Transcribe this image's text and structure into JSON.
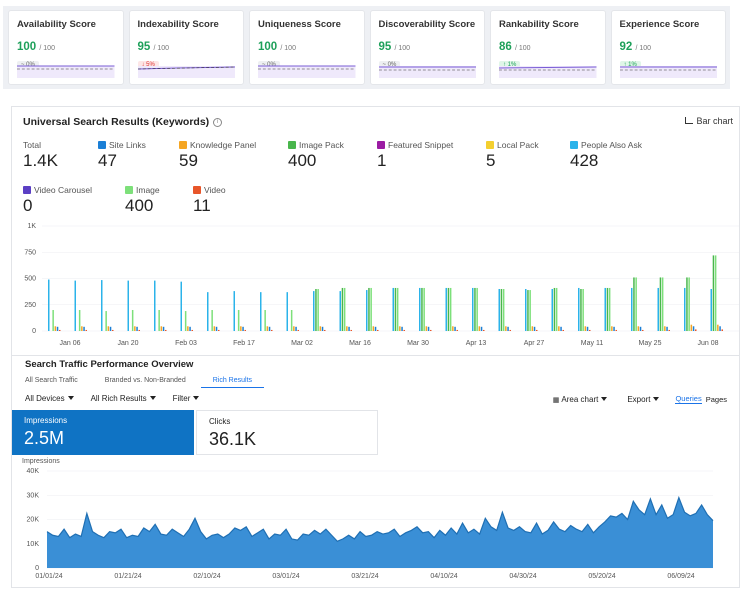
{
  "scores": [
    {
      "title": "Availability Score",
      "value": "100",
      "of": "/ 100",
      "delta": "~ 0%",
      "trend": "flat"
    },
    {
      "title": "Indexability Score",
      "value": "95",
      "of": "/ 100",
      "delta": "↓ 5%",
      "trend": "down"
    },
    {
      "title": "Uniqueness Score",
      "value": "100",
      "of": "/ 100",
      "delta": "~ 0%",
      "trend": "flat"
    },
    {
      "title": "Discoverability Score",
      "value": "95",
      "of": "/ 100",
      "delta": "~ 0%",
      "trend": "flat"
    },
    {
      "title": "Rankability Score",
      "value": "86",
      "of": "/ 100",
      "delta": "↑ 1%",
      "trend": "up"
    },
    {
      "title": "Experience Score",
      "value": "92",
      "of": "/ 100",
      "delta": "↑ 1%",
      "trend": "up"
    }
  ],
  "universal": {
    "title": "Universal Search Results (Keywords)",
    "info_icon": "info-icon",
    "view_button": "Bar chart",
    "total_label": "Total",
    "total_value": "1.4K",
    "metrics": [
      {
        "label": "Site Links",
        "value": "47",
        "color": "#1b7fd6"
      },
      {
        "label": "Knowledge Panel",
        "value": "59",
        "color": "#f5a623"
      },
      {
        "label": "Image Pack",
        "value": "400",
        "color": "#49b64c"
      },
      {
        "label": "Featured Snippet",
        "value": "1",
        "color": "#9b1ca3"
      },
      {
        "label": "Local Pack",
        "value": "5",
        "color": "#f4cf2f"
      },
      {
        "label": "People Also Ask",
        "value": "428",
        "color": "#2bb3ea"
      },
      {
        "label": "Video Carousel",
        "value": "0",
        "color": "#5b3fc4"
      },
      {
        "label": "Image",
        "value": "400",
        "color": "#7de07a"
      },
      {
        "label": "Video",
        "value": "11",
        "color": "#e8562a"
      }
    ]
  },
  "chart_data": [
    {
      "type": "bar",
      "title": "",
      "yticks": [
        "1K",
        "750",
        "500",
        "250",
        "0"
      ],
      "ylim": [
        0,
        1000
      ],
      "xticks": [
        "Jan 06",
        "Jan 20",
        "Feb 03",
        "Feb 17",
        "Mar 02",
        "Mar 16",
        "Mar 30",
        "Apr 13",
        "Apr 27",
        "May 11",
        "May 25",
        "Jun 08"
      ],
      "series": [
        {
          "name": "People Also Ask",
          "color": "#2bb3ea",
          "values": [
            490,
            480,
            485,
            480,
            480,
            470,
            370,
            380,
            370,
            370,
            380,
            380,
            390,
            410,
            410,
            410,
            410,
            400,
            400,
            400,
            410,
            410,
            410,
            410,
            410,
            400
          ]
        },
        {
          "name": "Image Pack",
          "color": "#49b64c",
          "values": [
            0,
            0,
            0,
            0,
            0,
            0,
            0,
            0,
            0,
            0,
            400,
            410,
            410,
            410,
            410,
            410,
            410,
            400,
            390,
            410,
            400,
            410,
            510,
            510,
            510,
            720
          ]
        },
        {
          "name": "Image",
          "color": "#7de07a",
          "values": [
            200,
            200,
            190,
            200,
            200,
            190,
            200,
            200,
            200,
            200,
            400,
            410,
            410,
            410,
            410,
            410,
            410,
            400,
            390,
            410,
            400,
            410,
            510,
            510,
            510,
            720
          ]
        },
        {
          "name": "Knowledge Panel",
          "color": "#f5a623",
          "values": [
            45,
            45,
            45,
            45,
            45,
            45,
            45,
            45,
            45,
            45,
            45,
            45,
            45,
            45,
            45,
            45,
            45,
            45,
            45,
            45,
            45,
            45,
            45,
            45,
            60,
            60
          ]
        },
        {
          "name": "Site Links",
          "color": "#1b7fd6",
          "values": [
            40,
            40,
            40,
            40,
            40,
            40,
            40,
            40,
            40,
            40,
            40,
            40,
            40,
            40,
            40,
            40,
            40,
            40,
            40,
            40,
            40,
            40,
            40,
            40,
            45,
            45
          ]
        },
        {
          "name": "Video",
          "color": "#e8562a",
          "values": [
            10,
            10,
            10,
            10,
            10,
            10,
            10,
            10,
            10,
            10,
            10,
            10,
            10,
            10,
            10,
            10,
            10,
            10,
            10,
            10,
            10,
            10,
            10,
            10,
            15,
            15
          ]
        }
      ]
    },
    {
      "type": "area",
      "title": "Impressions",
      "ylabel": "Impressions",
      "yticks": [
        "40K",
        "30K",
        "20K",
        "10K",
        "0"
      ],
      "ylim": [
        0,
        40000
      ],
      "xticks": [
        "01/01/24",
        "01/21/24",
        "02/10/24",
        "03/01/24",
        "03/21/24",
        "04/10/24",
        "04/30/24",
        "05/20/24",
        "06/09/24"
      ],
      "color": "#3a8fd6",
      "values": [
        15000,
        13500,
        13000,
        16000,
        12500,
        14000,
        13000,
        22500,
        15000,
        13500,
        12500,
        15000,
        14500,
        16000,
        12500,
        13500,
        13000,
        16500,
        15000,
        18000,
        14000,
        13500,
        16000,
        14500,
        13000,
        16000,
        20500,
        15000,
        12000,
        13500,
        14000,
        12500,
        14000,
        16500,
        15500,
        17000,
        13000,
        14500,
        16000,
        12000,
        14000,
        13500,
        16000,
        12000,
        11500,
        14000,
        13500,
        15500,
        14000,
        16000,
        13500,
        11000,
        12000,
        13500,
        12000,
        15000,
        13000,
        13500,
        15000,
        14000,
        14500,
        16000,
        13000,
        14500,
        15500,
        17000,
        14500,
        15000,
        12500,
        15500,
        13500,
        16500,
        14000,
        18500,
        14500,
        16000,
        14000,
        20500,
        17000,
        15500,
        23000,
        16500,
        15500,
        17000,
        15000,
        14500,
        18500,
        14000,
        15500,
        19000,
        16000,
        15000,
        17500,
        16000,
        15000,
        18000,
        14500,
        17000,
        19000,
        21500,
        21000,
        22500,
        20000,
        27500,
        24000,
        22000,
        28500,
        22000,
        26000,
        20500,
        22000,
        29000,
        23000,
        21500,
        22500,
        26000,
        22000,
        19500
      ]
    }
  ],
  "traffic": {
    "title": "Search Traffic Performance Overview",
    "tabs": [
      "All Search Traffic",
      "Branded vs. Non-Branded",
      "Rich Results"
    ],
    "active_tab": "Rich Results",
    "filters": [
      "All Devices",
      "All Rich Results",
      "Filter"
    ],
    "chart_type": "Area chart",
    "export": "Export",
    "queries": "Queries",
    "pages": "Pages",
    "impressions_label": "Impressions",
    "impressions_value": "2.5M",
    "clicks_label": "Clicks",
    "clicks_value": "36.1K",
    "chart_label": "Impressions"
  }
}
